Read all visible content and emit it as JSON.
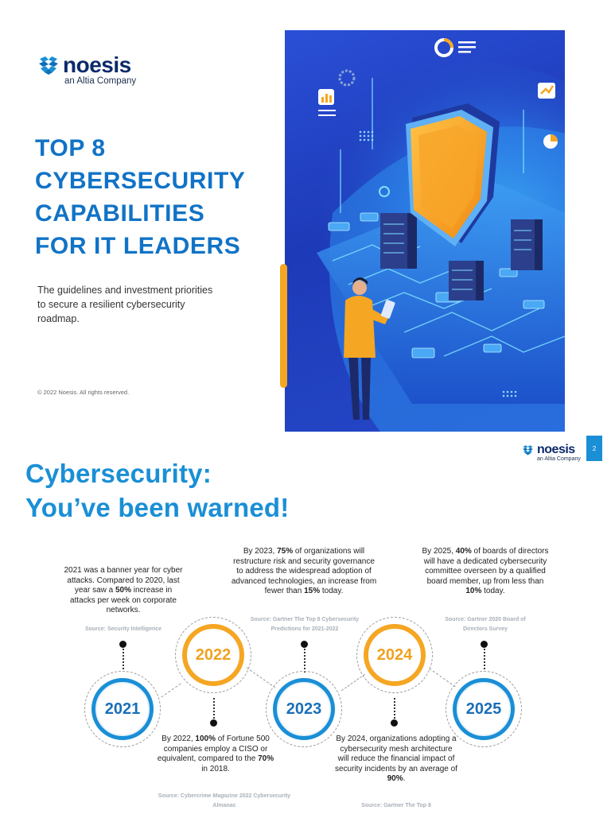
{
  "page1": {
    "logo": {
      "word": "noesis",
      "sub": "an Altia Company"
    },
    "title_lines": [
      "TOP 8",
      "CYBERSECURITY",
      "CAPABILITIES",
      "FOR IT LEADERS"
    ],
    "description": "The guidelines and investment priorities to secure a resilient cybersecurity roadmap.",
    "copyright": "© 2022 Noesis. All rights reserved.",
    "colors": {
      "title": "#1173c6",
      "accent": "#f5a623",
      "hero_bg": "#2040c8"
    }
  },
  "page2": {
    "logo": {
      "word": "noesis",
      "sub": "an Altia Company"
    },
    "page_number": "2",
    "title_lines": [
      "Cybersecurity:",
      "You’ve been warned!"
    ],
    "timeline": [
      {
        "year": "2021",
        "text_html": "2021 was a banner year for cyber attacks. Compared to 2020, last year saw a <b>50%</b> increase in attacks per week on corporate networks.",
        "source": "Source: Security Intelligence"
      },
      {
        "year": "2022",
        "text_html": "By 2022, <b>100%</b> of Fortune 500 companies employ a CISO or equivalent, compared to the <b>70%</b> in 2018.",
        "source": "Source: Cybercrime Magazine 2022 Cybersecurity Almanac"
      },
      {
        "year": "2023",
        "text_html": "By 2023, <b>75%</b> of organizations will restructure risk and security governance to address the widespread adoption of advanced technologies, an increase from fewer than <b>15%</b> today.",
        "source": "Source: Gartner The Top 8 Cybersecurity Predictions for 2021-2022"
      },
      {
        "year": "2024",
        "text_html": "By 2024, organizations adopting a cybersecurity mesh architecture will reduce the financial impact of security incidents by an average of <b>90%</b>.",
        "source": "Source: Gartner The Top 8"
      },
      {
        "year": "2025",
        "text_html": "By 2025, <b>40%</b> of boards of directors will have a dedicated cybersecurity committee overseen by a qualified board member, up from less than <b>10%</b> today.",
        "source": "Source: Gartner 2020 Board of Directors Survey"
      }
    ],
    "colors": {
      "title": "#1a8fd6",
      "blue_ring": "#1a8fd6",
      "orange_ring": "#f5a623"
    }
  }
}
